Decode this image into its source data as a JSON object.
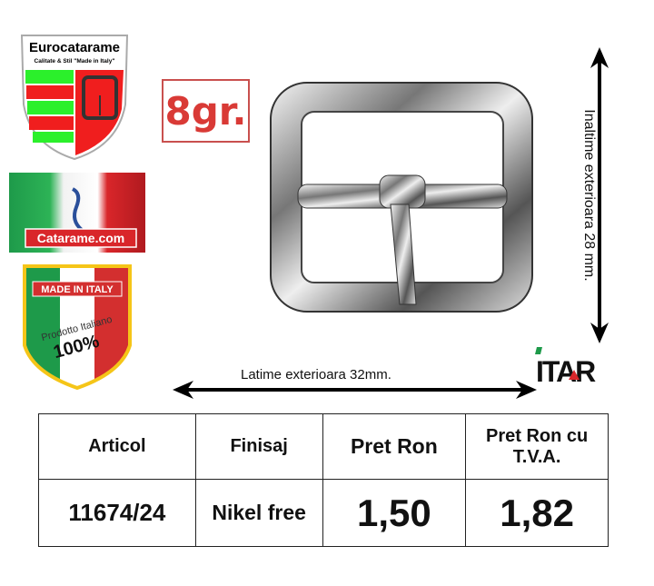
{
  "logos": {
    "eurocatarame_title": "Eurocatarame",
    "eurocatarame_sub": "Calitate & Stil \"Made in Italy\"",
    "catarame_com": "Catarame.com",
    "made_in_italy": "MADE IN ITALY",
    "prodotto": "Prodotto Italiano",
    "percent": "100%",
    "itar": "ITAR"
  },
  "weight": "8gr.",
  "dimensions": {
    "height": "Inaltime exterioara 28 mm.",
    "width": "Latime exterioara 32mm."
  },
  "table": {
    "headers": [
      "Articol",
      "Finisaj",
      "Pret Ron",
      "Pret Ron cu T.V.A."
    ],
    "row": [
      "11674/24",
      "Nikel free",
      "1,50",
      "1,82"
    ]
  },
  "colors": {
    "red": "#d93a36",
    "green": "#1e9a4a"
  }
}
